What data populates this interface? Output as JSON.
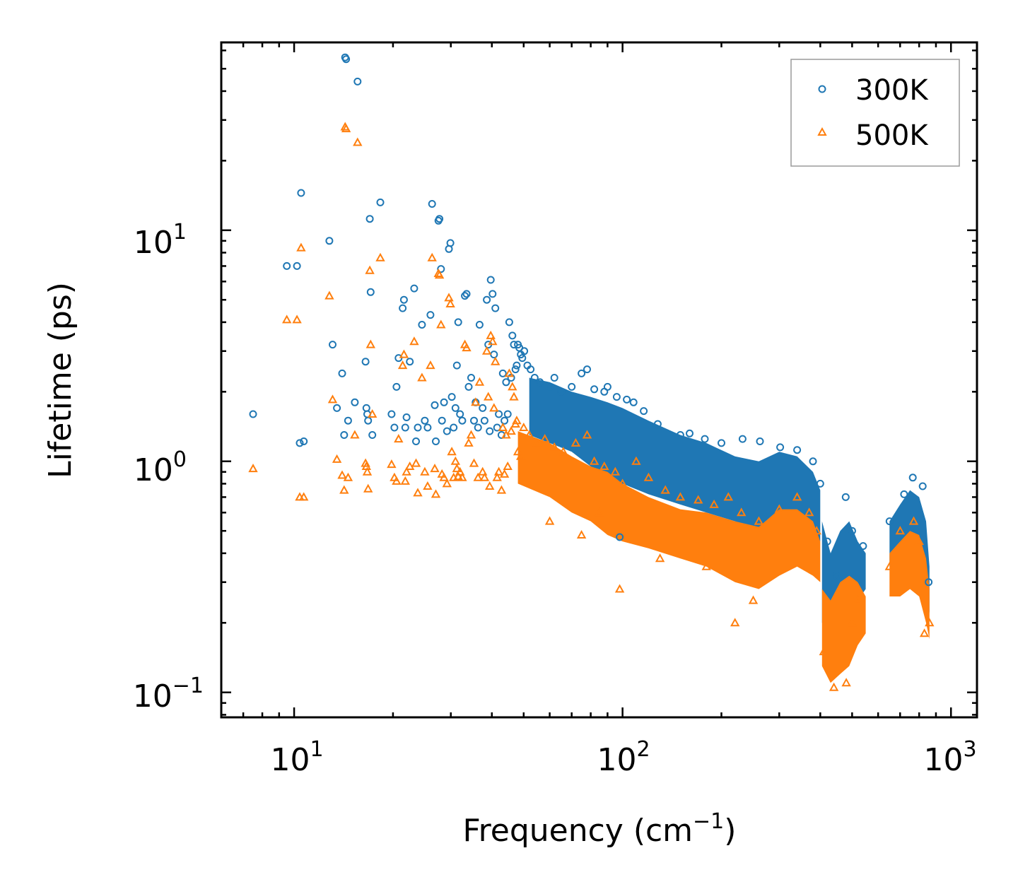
{
  "chart_data": {
    "type": "scatter",
    "xscale": "log",
    "yscale": "log",
    "xlabel": "Frequency (cm",
    "xlabel_sup": "−1",
    "xlabel_suffix": ")",
    "ylabel": "Lifetime (ps)",
    "xlim": [
      6,
      1200
    ],
    "ylim": [
      0.078,
      65
    ],
    "xticks": [
      {
        "value": 10,
        "base": "10",
        "exp": "1"
      },
      {
        "value": 100,
        "base": "10",
        "exp": "2"
      },
      {
        "value": 1000,
        "base": "10",
        "exp": "3"
      }
    ],
    "yticks": [
      {
        "value": 0.1,
        "base": "10",
        "exp": "−1"
      },
      {
        "value": 1,
        "base": "10",
        "exp": "0"
      },
      {
        "value": 10,
        "base": "10",
        "exp": "1"
      }
    ],
    "legend_position": "top-right",
    "series": [
      {
        "name": "300K",
        "marker": "circle",
        "color": "#1f77b4",
        "points": [
          [
            7.5,
            1.6
          ],
          [
            9.5,
            7.0
          ],
          [
            10.2,
            7.0
          ],
          [
            10.4,
            1.2
          ],
          [
            10.5,
            14.5
          ],
          [
            10.7,
            1.22
          ],
          [
            12.8,
            9.0
          ],
          [
            13.1,
            3.2
          ],
          [
            13.5,
            1.7
          ],
          [
            14.0,
            2.4
          ],
          [
            14.2,
            1.3
          ],
          [
            14.3,
            56
          ],
          [
            14.4,
            55
          ],
          [
            14.6,
            1.5
          ],
          [
            15.3,
            1.8
          ],
          [
            15.6,
            44
          ],
          [
            16.5,
            2.7
          ],
          [
            16.6,
            1.7
          ],
          [
            16.7,
            1.6
          ],
          [
            16.8,
            1.5
          ],
          [
            17.0,
            11.2
          ],
          [
            17.1,
            5.4
          ],
          [
            17.3,
            1.3
          ],
          [
            18.3,
            13.2
          ],
          [
            19.8,
            1.6
          ],
          [
            20.2,
            1.4
          ],
          [
            20.5,
            2.1
          ],
          [
            20.8,
            2.8
          ],
          [
            21.4,
            4.6
          ],
          [
            21.6,
            5.0
          ],
          [
            21.8,
            1.4
          ],
          [
            22.0,
            1.55
          ],
          [
            22.5,
            2.7
          ],
          [
            23.2,
            5.6
          ],
          [
            23.5,
            1.22
          ],
          [
            23.8,
            1.4
          ],
          [
            24.5,
            3.9
          ],
          [
            25.0,
            1.5
          ],
          [
            25.5,
            1.4
          ],
          [
            26.0,
            4.3
          ],
          [
            26.3,
            13.0
          ],
          [
            26.8,
            1.75
          ],
          [
            27.0,
            1.22
          ],
          [
            27.5,
            11.0
          ],
          [
            27.7,
            11.2
          ],
          [
            28.0,
            6.8
          ],
          [
            28.2,
            1.5
          ],
          [
            28.6,
            1.8
          ],
          [
            29.2,
            1.35
          ],
          [
            29.6,
            8.3
          ],
          [
            29.9,
            8.8
          ],
          [
            30.2,
            1.9
          ],
          [
            30.6,
            1.4
          ],
          [
            31.0,
            1.7
          ],
          [
            31.3,
            2.6
          ],
          [
            31.6,
            4.0
          ],
          [
            32.0,
            1.6
          ],
          [
            32.5,
            1.5
          ],
          [
            33.1,
            5.2
          ],
          [
            33.5,
            5.3
          ],
          [
            34.0,
            2.1
          ],
          [
            34.6,
            2.3
          ],
          [
            35.3,
            1.5
          ],
          [
            35.7,
            1.8
          ],
          [
            36.3,
            1.4
          ],
          [
            36.7,
            3.9
          ],
          [
            37.5,
            1.7
          ],
          [
            38.0,
            1.5
          ],
          [
            38.6,
            5.0
          ],
          [
            39.0,
            3.2
          ],
          [
            39.4,
            1.35
          ],
          [
            39.7,
            6.1
          ],
          [
            40.2,
            5.3
          ],
          [
            40.6,
            2.9
          ],
          [
            41.0,
            4.6
          ],
          [
            41.5,
            1.4
          ],
          [
            42.0,
            1.6
          ],
          [
            42.8,
            1.3
          ],
          [
            43.2,
            2.4
          ],
          [
            43.7,
            1.5
          ],
          [
            44.2,
            2.2
          ],
          [
            44.7,
            1.6
          ],
          [
            45.2,
            4.0
          ],
          [
            45.8,
            2.3
          ],
          [
            46.2,
            3.5
          ],
          [
            46.7,
            3.2
          ],
          [
            47.2,
            2.5
          ],
          [
            47.6,
            2.6
          ],
          [
            48.0,
            3.2
          ],
          [
            48.5,
            3.1
          ],
          [
            49.0,
            2.9
          ],
          [
            49.5,
            2.8
          ],
          [
            50.2,
            3.0
          ],
          [
            51.3,
            2.6
          ],
          [
            52.5,
            2.5
          ],
          [
            54.0,
            2.3
          ],
          [
            56.0,
            2.2
          ],
          [
            60.0,
            2.1
          ],
          [
            62.0,
            2.3
          ],
          [
            65.0,
            2.0
          ],
          [
            70.0,
            2.1
          ],
          [
            75.0,
            2.4
          ],
          [
            78.0,
            2.5
          ],
          [
            82.0,
            2.05
          ],
          [
            88.0,
            2.0
          ],
          [
            90.0,
            2.1
          ],
          [
            96.0,
            1.9
          ],
          [
            103.0,
            1.85
          ],
          [
            108.0,
            1.8
          ],
          [
            116.0,
            1.65
          ],
          [
            128.0,
            1.45
          ],
          [
            150.0,
            1.3
          ],
          [
            160.0,
            1.32
          ],
          [
            178.0,
            1.25
          ],
          [
            200.0,
            1.2
          ],
          [
            232.0,
            1.25
          ],
          [
            262.0,
            1.22
          ],
          [
            302.0,
            1.15
          ],
          [
            340.0,
            1.12
          ],
          [
            380.0,
            1.0
          ],
          [
            400.0,
            0.8
          ],
          [
            420.0,
            0.45
          ],
          [
            448.0,
            0.32
          ],
          [
            478.0,
            0.7
          ],
          [
            500.0,
            0.5
          ],
          [
            540.0,
            0.43
          ],
          [
            650.0,
            0.55
          ],
          [
            720.0,
            0.72
          ],
          [
            765.0,
            0.85
          ],
          [
            820.0,
            0.78
          ],
          [
            855.0,
            0.3
          ],
          [
            98.0,
            0.47
          ]
        ]
      },
      {
        "name": "500K",
        "marker": "triangle",
        "color": "#ff7f0e",
        "points": [
          [
            7.5,
            0.93
          ],
          [
            9.5,
            4.1
          ],
          [
            10.2,
            4.1
          ],
          [
            10.4,
            0.7
          ],
          [
            10.5,
            8.4
          ],
          [
            10.7,
            0.7
          ],
          [
            12.8,
            5.2
          ],
          [
            13.1,
            1.85
          ],
          [
            13.5,
            1.02
          ],
          [
            14.0,
            0.87
          ],
          [
            14.2,
            0.75
          ],
          [
            14.3,
            28
          ],
          [
            14.4,
            27.5
          ],
          [
            14.6,
            0.85
          ],
          [
            15.3,
            1.3
          ],
          [
            15.6,
            24
          ],
          [
            16.5,
            0.98
          ],
          [
            16.6,
            0.95
          ],
          [
            16.7,
            0.9
          ],
          [
            16.8,
            0.76
          ],
          [
            17.0,
            6.7
          ],
          [
            17.1,
            3.2
          ],
          [
            17.3,
            1.6
          ],
          [
            18.3,
            7.6
          ],
          [
            19.8,
            0.97
          ],
          [
            20.2,
            0.85
          ],
          [
            20.5,
            0.82
          ],
          [
            20.8,
            1.25
          ],
          [
            21.4,
            2.6
          ],
          [
            21.6,
            2.9
          ],
          [
            21.8,
            0.82
          ],
          [
            22.0,
            0.9
          ],
          [
            22.5,
            0.95
          ],
          [
            23.2,
            3.3
          ],
          [
            23.5,
            0.98
          ],
          [
            23.8,
            0.73
          ],
          [
            24.5,
            2.3
          ],
          [
            25.0,
            0.9
          ],
          [
            25.5,
            0.78
          ],
          [
            26.0,
            2.6
          ],
          [
            26.3,
            7.6
          ],
          [
            26.8,
            0.93
          ],
          [
            27.0,
            0.72
          ],
          [
            27.5,
            6.5
          ],
          [
            27.7,
            6.4
          ],
          [
            28.0,
            3.9
          ],
          [
            28.2,
            0.88
          ],
          [
            28.6,
            0.85
          ],
          [
            29.2,
            0.8
          ],
          [
            29.6,
            5.1
          ],
          [
            29.9,
            4.8
          ],
          [
            30.2,
            1.1
          ],
          [
            30.6,
            0.85
          ],
          [
            31.0,
            1.0
          ],
          [
            31.3,
            0.93
          ],
          [
            31.6,
            0.86
          ],
          [
            32.0,
            0.9
          ],
          [
            32.5,
            0.85
          ],
          [
            33.1,
            3.2
          ],
          [
            33.5,
            3.1
          ],
          [
            34.0,
            1.2
          ],
          [
            34.6,
            1.3
          ],
          [
            35.3,
            0.98
          ],
          [
            35.7,
            1.8
          ],
          [
            36.3,
            0.85
          ],
          [
            36.7,
            2.2
          ],
          [
            37.5,
            0.9
          ],
          [
            38.0,
            0.85
          ],
          [
            38.6,
            3.0
          ],
          [
            39.0,
            1.9
          ],
          [
            39.4,
            0.78
          ],
          [
            39.7,
            3.5
          ],
          [
            40.2,
            3.3
          ],
          [
            40.6,
            1.7
          ],
          [
            41.0,
            2.7
          ],
          [
            41.5,
            0.85
          ],
          [
            42.0,
            0.9
          ],
          [
            42.8,
            0.75
          ],
          [
            43.2,
            1.4
          ],
          [
            43.7,
            0.88
          ],
          [
            44.2,
            1.3
          ],
          [
            44.7,
            0.95
          ],
          [
            45.2,
            2.4
          ],
          [
            45.8,
            1.35
          ],
          [
            46.2,
            2.1
          ],
          [
            46.7,
            1.9
          ],
          [
            47.2,
            1.45
          ],
          [
            47.6,
            1.5
          ],
          [
            48.0,
            1.1
          ],
          [
            49.0,
            1.05
          ],
          [
            50.0,
            1.4
          ],
          [
            52.0,
            1.3
          ],
          [
            55.0,
            1.2
          ],
          [
            58.0,
            1.25
          ],
          [
            62.0,
            1.15
          ],
          [
            66.0,
            1.1
          ],
          [
            72.0,
            1.2
          ],
          [
            78.0,
            1.3
          ],
          [
            82.0,
            1.0
          ],
          [
            88.0,
            0.95
          ],
          [
            95.0,
            0.9
          ],
          [
            100.0,
            0.8
          ],
          [
            110.0,
            1.0
          ],
          [
            120.0,
            0.85
          ],
          [
            135.0,
            0.75
          ],
          [
            150.0,
            0.7
          ],
          [
            170.0,
            0.68
          ],
          [
            190.0,
            0.65
          ],
          [
            210.0,
            0.7
          ],
          [
            230.0,
            0.6
          ],
          [
            260.0,
            0.55
          ],
          [
            300.0,
            0.62
          ],
          [
            340.0,
            0.7
          ],
          [
            370.0,
            0.6
          ],
          [
            390.0,
            0.5
          ],
          [
            410.0,
            0.15
          ],
          [
            440.0,
            0.105
          ],
          [
            480.0,
            0.11
          ],
          [
            500.0,
            0.2
          ],
          [
            520.0,
            0.25
          ],
          [
            650.0,
            0.35
          ],
          [
            700.0,
            0.5
          ],
          [
            770.0,
            0.55
          ],
          [
            800.0,
            0.45
          ],
          [
            830.0,
            0.18
          ],
          [
            860.0,
            0.2
          ],
          [
            98.0,
            0.28
          ],
          [
            220.0,
            0.2
          ],
          [
            60.0,
            0.55
          ],
          [
            75.0,
            0.48
          ],
          [
            85.0,
            0.6
          ],
          [
            130.0,
            0.38
          ],
          [
            180.0,
            0.35
          ],
          [
            250.0,
            0.25
          ]
        ]
      }
    ]
  }
}
